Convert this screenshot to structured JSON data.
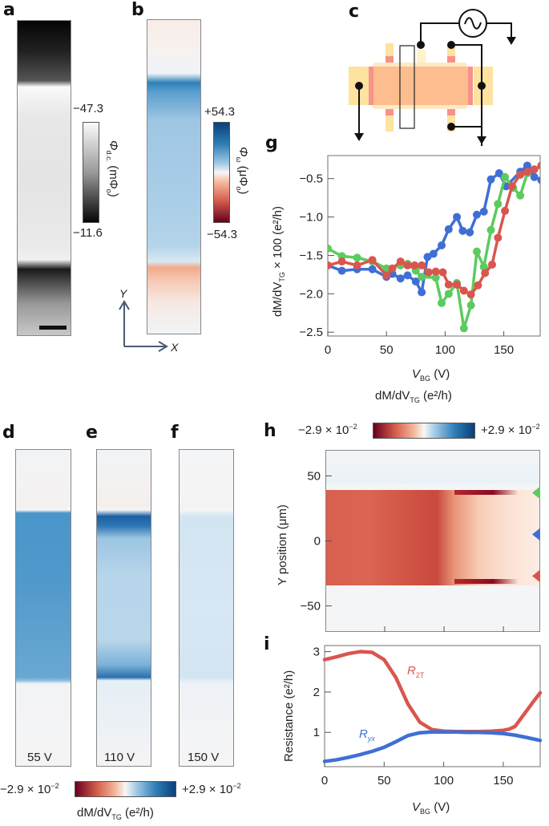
{
  "panels": {
    "a": {
      "label": "a",
      "colorbar": {
        "max_label": "−47.3",
        "min_label": "−11.6",
        "quantity": "Φ",
        "quantity_sub": "d.c.",
        "unit": "(mΦ",
        "unit_sub": "o",
        "unit_end": ")"
      },
      "scale_bar": "scale-bar"
    },
    "b": {
      "label": "b",
      "colorbar": {
        "max_label": "+54.3",
        "min_label": "−54.3",
        "quantity": "Φ",
        "quantity_sub": "ω",
        "unit": "(μΦ",
        "unit_sub": "o",
        "unit_end": ")"
      },
      "axes": {
        "y": "Y",
        "x": "X"
      }
    },
    "c": {
      "label": "c",
      "icons": [
        "ac-source-icon",
        "ground-arrow-icon"
      ]
    },
    "d": {
      "label": "d",
      "voltage": "55 V"
    },
    "e": {
      "label": "e",
      "voltage": "110 V"
    },
    "f": {
      "label": "f",
      "voltage": "150 V"
    },
    "def_colorbar": {
      "min_label": "−2.9 × 10",
      "min_exp": "−2",
      "max_label": "+2.9 × 10",
      "max_exp": "−2",
      "title_pre": "dM/dV",
      "title_sub": "TG",
      "title_post": " (e²/h)"
    },
    "h": {
      "label": "h",
      "colorbar": {
        "title_pre": "dM/dV",
        "title_sub": "TG",
        "title_post": " (e²/h)",
        "min_label": "−2.9 × 10",
        "min_exp": "−2",
        "max_label": "+2.9 × 10",
        "max_exp": "−2"
      },
      "ylabel": "Y position (μm)",
      "yticks": [
        "50",
        "0",
        "−50"
      ],
      "markers": [
        "green",
        "blue",
        "red"
      ]
    },
    "g": {
      "label": "g"
    },
    "i": {
      "label": "i"
    }
  },
  "chart_data": [
    {
      "id": "g",
      "type": "line",
      "title": "",
      "xlabel": "V_BG (V)",
      "xlabel_main": "V",
      "xlabel_sub": "BG",
      "xlabel_unit": " (V)",
      "ylabel_main": "dM/dV",
      "ylabel_sub": "TG",
      "ylabel_unit": " × 100 (e²/h)",
      "xlim": [
        0,
        181
      ],
      "ylim": [
        -2.55,
        -0.2
      ],
      "xticks": [
        0,
        50,
        100,
        150
      ],
      "xtick_labels": [
        "0",
        "50",
        "100",
        "150"
      ],
      "yticks": [
        -0.5,
        -1.0,
        -1.5,
        -2.0,
        -2.5
      ],
      "ytick_labels": [
        "−0.5",
        "−1.0",
        "−1.5",
        "−2.0",
        "−2.5"
      ],
      "series": [
        {
          "name": "blue",
          "color": "#3f6fd6",
          "x": [
            0,
            12,
            25,
            38,
            50,
            55,
            62,
            68,
            75,
            80,
            85,
            90,
            97,
            103,
            110,
            115,
            121,
            127,
            133,
            139,
            146,
            152,
            164,
            170,
            176,
            182
          ],
          "y": [
            -1.63,
            -1.7,
            -1.68,
            -1.68,
            -1.78,
            -1.74,
            -1.8,
            -1.76,
            -1.84,
            -1.98,
            -1.52,
            -1.48,
            -1.37,
            -1.16,
            -1.0,
            -1.18,
            -1.2,
            -0.97,
            -0.93,
            -0.51,
            -0.43,
            -0.6,
            -0.41,
            -0.33,
            -0.48,
            -0.52
          ]
        },
        {
          "name": "green",
          "color": "#5ccb5f",
          "x": [
            0,
            12,
            25,
            38,
            50,
            62,
            68,
            75,
            80,
            92,
            97,
            103,
            110,
            116,
            122,
            127,
            133,
            139,
            145,
            151,
            158,
            164,
            170,
            176,
            182
          ],
          "y": [
            -1.41,
            -1.51,
            -1.53,
            -1.58,
            -1.67,
            -1.63,
            -1.61,
            -1.7,
            -1.78,
            -1.79,
            -2.12,
            -2.0,
            -1.86,
            -2.45,
            -2.15,
            -1.45,
            -1.65,
            -1.17,
            -0.83,
            -0.48,
            -0.62,
            -0.72,
            -0.43,
            -0.38,
            -0.33
          ]
        },
        {
          "name": "red",
          "color": "#d9564f",
          "x": [
            0,
            12,
            25,
            38,
            50,
            55,
            62,
            68,
            74,
            80,
            86,
            92,
            98,
            103,
            110,
            116,
            122,
            128,
            134,
            140,
            145,
            151,
            157,
            164,
            170,
            176,
            182
          ],
          "y": [
            -1.63,
            -1.58,
            -1.63,
            -1.56,
            -1.76,
            -1.67,
            -1.58,
            -1.63,
            -1.63,
            -1.63,
            -1.72,
            -1.71,
            -1.72,
            -1.88,
            -1.88,
            -1.96,
            -2.01,
            -1.89,
            -1.73,
            -1.62,
            -1.27,
            -0.92,
            -0.6,
            -0.45,
            -0.41,
            -0.38,
            -0.33
          ]
        }
      ],
      "grid": false,
      "legend": "none"
    },
    {
      "id": "h",
      "type": "heatmap",
      "xlabel": "",
      "ylabel": "Y position (μm)",
      "xlim": [
        0,
        181
      ],
      "ylim": [
        -70,
        70
      ],
      "xticks": [
        50,
        100,
        150
      ],
      "yticks": [
        50,
        0,
        -50
      ],
      "ytick_labels": [
        "50",
        "0",
        "−50"
      ],
      "colorbar_range": [
        -0.029,
        0.029
      ],
      "band_y_range": [
        -34,
        40
      ],
      "markers": [
        {
          "color": "#5ccb5f",
          "y": 37
        },
        {
          "color": "#3f6fd6",
          "y": 5
        },
        {
          "color": "#d9564f",
          "y": -27
        }
      ]
    },
    {
      "id": "i",
      "type": "line",
      "xlabel_main": "V",
      "xlabel_sub": "BG",
      "xlabel_unit": " (V)",
      "ylabel": "Resistance (e²/h)",
      "xlim": [
        0,
        181
      ],
      "ylim": [
        0.15,
        3.15
      ],
      "xticks": [
        0,
        50,
        100,
        150
      ],
      "xtick_labels": [
        "0",
        "50",
        "100",
        "150"
      ],
      "yticks": [
        1,
        2,
        3
      ],
      "ytick_labels": [
        "1",
        "2",
        "3"
      ],
      "series": [
        {
          "name": "R2T",
          "label_main": "R",
          "label_sub": "2T",
          "color": "#d9564f",
          "x": [
            0,
            10,
            20,
            30,
            40,
            50,
            60,
            70,
            80,
            90,
            100,
            110,
            120,
            130,
            140,
            150,
            155,
            160,
            165,
            170,
            175,
            181
          ],
          "y": [
            2.8,
            2.87,
            2.95,
            3.0,
            2.98,
            2.8,
            2.35,
            1.7,
            1.25,
            1.07,
            1.03,
            1.02,
            1.02,
            1.02,
            1.03,
            1.05,
            1.08,
            1.15,
            1.35,
            1.55,
            1.75,
            1.98
          ]
        },
        {
          "name": "Ryx",
          "label_main": "R",
          "label_sub": "yx",
          "color": "#3f6fd6",
          "x": [
            0,
            10,
            20,
            30,
            40,
            50,
            60,
            70,
            80,
            90,
            100,
            110,
            120,
            130,
            140,
            150,
            160,
            170,
            181
          ],
          "y": [
            0.28,
            0.32,
            0.38,
            0.45,
            0.53,
            0.63,
            0.77,
            0.92,
            0.99,
            1.01,
            1.01,
            1.01,
            1.0,
            1.0,
            0.99,
            0.97,
            0.93,
            0.87,
            0.8
          ]
        }
      ],
      "grid": false,
      "legend": "inline"
    }
  ]
}
